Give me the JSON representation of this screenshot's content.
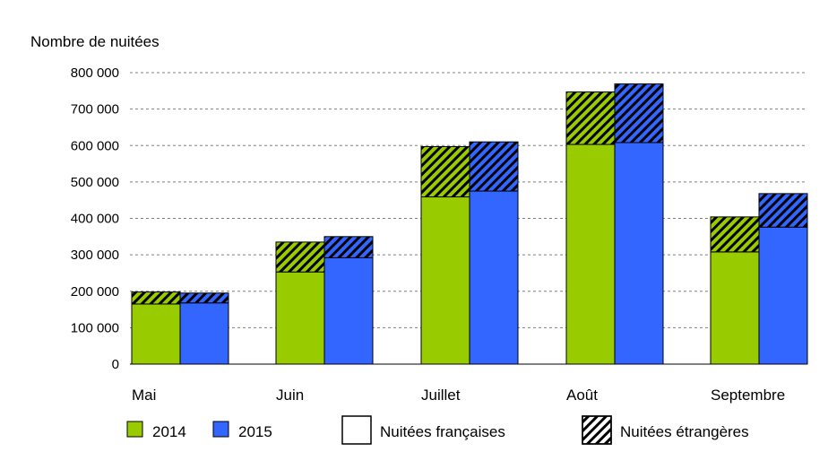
{
  "chart_data": {
    "type": "bar",
    "ylabel": "Nombre de nuitées",
    "ylim": [
      0,
      800000
    ],
    "ytick_values": [
      0,
      100000,
      200000,
      300000,
      400000,
      500000,
      600000,
      700000,
      800000
    ],
    "ytick_labels": [
      "0",
      "100 000",
      "200 000",
      "300 000",
      "400 000",
      "500 000",
      "600 000",
      "700 000",
      "800 000"
    ],
    "grid": true,
    "legend_position": "bottom",
    "categories": [
      "Mai",
      "Juin",
      "Juillet",
      "Août",
      "Septembre"
    ],
    "series": [
      {
        "name": "2014",
        "color": "#99cc00",
        "french": [
          165000,
          253000,
          459000,
          603000,
          308000
        ],
        "foreign": [
          33000,
          82000,
          138000,
          144000,
          96000
        ]
      },
      {
        "name": "2015",
        "color": "#3366ff",
        "french": [
          168000,
          292000,
          475000,
          608000,
          376000
        ],
        "foreign": [
          27000,
          58000,
          135000,
          161000,
          92000
        ]
      }
    ],
    "segment_legend": [
      {
        "key": "french",
        "label": "Nuitées françaises",
        "fill": "plain"
      },
      {
        "key": "foreign",
        "label": "Nuitées étrangères",
        "fill": "hatched"
      }
    ]
  }
}
